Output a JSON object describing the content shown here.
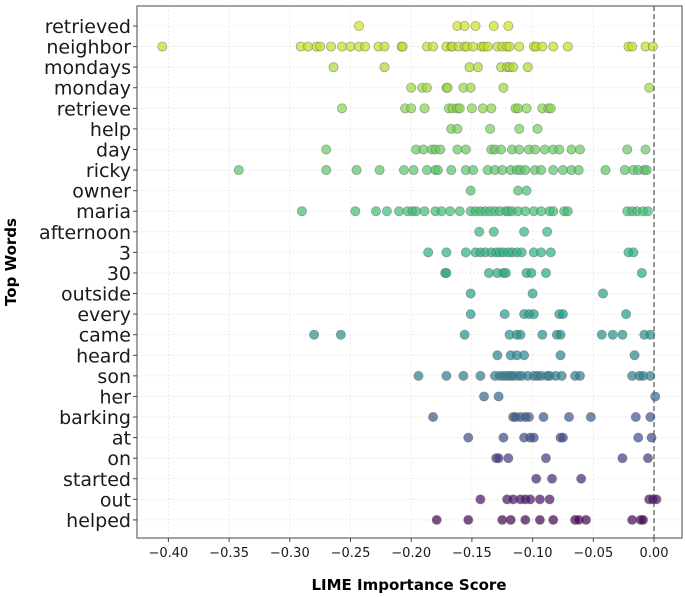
{
  "chart_data": {
    "type": "scatter",
    "subtype": "strip",
    "title": "",
    "xlabel": "LIME Importance Score",
    "ylabel": "Top Words",
    "xlim": [
      -0.42,
      0.02
    ],
    "xticks": [
      -0.4,
      -0.35,
      -0.3,
      -0.25,
      -0.2,
      -0.15,
      -0.1,
      -0.05,
      0.0
    ],
    "xtick_labels": [
      "−0.40",
      "−0.35",
      "−0.30",
      "−0.25",
      "−0.20",
      "−0.15",
      "−0.10",
      "−0.05",
      "0.00"
    ],
    "grid": true,
    "reference_line": {
      "x": 0.0,
      "style": "dashed",
      "color": "#555555"
    },
    "colormap": "viridis (top=yellow, bottom=purple)",
    "categories": [
      "retrieved",
      "neighbor",
      "mondays",
      "monday",
      "retrieve",
      "help",
      "day",
      "ricky",
      "owner",
      "maria",
      "afternoon",
      "3",
      "30",
      "outside",
      "every",
      "came",
      "heard",
      "son",
      "her",
      "barking",
      "at",
      "on",
      "started",
      "out",
      "helped"
    ],
    "colors": [
      "#d2e21b",
      "#c2df23",
      "#addc30",
      "#9ad93c",
      "#86d549",
      "#75d054",
      "#65cb5e",
      "#56c667",
      "#48c16e",
      "#3dbc74",
      "#32b67a",
      "#2ab07f",
      "#24aa83",
      "#1fa287",
      "#1e9b8a",
      "#21918c",
      "#25858e",
      "#2c7b8e",
      "#31688e",
      "#38598c",
      "#3f4a8a",
      "#453781",
      "#482475",
      "#471365",
      "#440154"
    ],
    "series": [
      {
        "name": "retrieved",
        "values": [
          -0.243,
          -0.162,
          -0.156,
          -0.147,
          -0.132,
          -0.12
        ]
      },
      {
        "name": "neighbor",
        "values": [
          -0.405,
          -0.291,
          -0.285,
          -0.278,
          -0.275,
          -0.266,
          -0.257,
          -0.25,
          -0.243,
          -0.238,
          -0.227,
          -0.222,
          -0.208,
          -0.207,
          -0.187,
          -0.182,
          -0.171,
          -0.167,
          -0.166,
          -0.161,
          -0.156,
          -0.154,
          -0.149,
          -0.142,
          -0.14,
          -0.137,
          -0.129,
          -0.125,
          -0.121,
          -0.119,
          -0.111,
          -0.099,
          -0.097,
          -0.092,
          -0.083,
          -0.071,
          -0.021,
          -0.018,
          -0.007,
          -0.001
        ]
      },
      {
        "name": "mondays",
        "values": [
          -0.264,
          -0.222,
          -0.152,
          -0.145,
          -0.126,
          -0.121,
          -0.119,
          -0.116,
          -0.104
        ]
      },
      {
        "name": "monday",
        "values": [
          -0.2,
          -0.191,
          -0.187,
          -0.171,
          -0.17,
          -0.157,
          -0.151,
          -0.124,
          -0.004
        ]
      },
      {
        "name": "retrieve",
        "values": [
          -0.257,
          -0.205,
          -0.2,
          -0.189,
          -0.169,
          -0.166,
          -0.162,
          -0.16,
          -0.15,
          -0.141,
          -0.134,
          -0.114,
          -0.112,
          -0.105,
          -0.092,
          -0.087,
          -0.085
        ]
      },
      {
        "name": "help",
        "values": [
          -0.167,
          -0.162,
          -0.135,
          -0.111,
          -0.096
        ]
      },
      {
        "name": "day",
        "values": [
          -0.27,
          -0.196,
          -0.19,
          -0.183,
          -0.18,
          -0.176,
          -0.162,
          -0.155,
          -0.134,
          -0.131,
          -0.126,
          -0.117,
          -0.111,
          -0.103,
          -0.098,
          -0.09,
          -0.083,
          -0.078,
          -0.068,
          -0.061,
          -0.022,
          -0.007
        ]
      },
      {
        "name": "ricky",
        "values": [
          -0.342,
          -0.27,
          -0.245,
          -0.226,
          -0.206,
          -0.198,
          -0.187,
          -0.18,
          -0.178,
          -0.167,
          -0.155,
          -0.149,
          -0.137,
          -0.131,
          -0.125,
          -0.118,
          -0.113,
          -0.11,
          -0.106,
          -0.098,
          -0.093,
          -0.083,
          -0.075,
          -0.068,
          -0.062,
          -0.04,
          -0.024,
          -0.017,
          -0.013,
          -0.008,
          -0.006
        ]
      },
      {
        "name": "owner",
        "values": [
          -0.151,
          -0.112,
          -0.105
        ]
      },
      {
        "name": "maria",
        "values": [
          -0.29,
          -0.246,
          -0.229,
          -0.22,
          -0.21,
          -0.203,
          -0.199,
          -0.196,
          -0.189,
          -0.18,
          -0.175,
          -0.168,
          -0.16,
          -0.151,
          -0.147,
          -0.143,
          -0.139,
          -0.135,
          -0.131,
          -0.127,
          -0.122,
          -0.12,
          -0.117,
          -0.112,
          -0.106,
          -0.099,
          -0.093,
          -0.086,
          -0.083,
          -0.074,
          -0.071,
          -0.022,
          -0.018,
          -0.014,
          -0.009,
          -0.005
        ]
      },
      {
        "name": "afternoon",
        "values": [
          -0.144,
          -0.132,
          -0.107,
          -0.088
        ]
      },
      {
        "name": "3",
        "values": [
          -0.186,
          -0.171,
          -0.155,
          -0.147,
          -0.143,
          -0.139,
          -0.134,
          -0.13,
          -0.127,
          -0.124,
          -0.12,
          -0.117,
          -0.113,
          -0.109,
          -0.099,
          -0.093,
          -0.085,
          -0.021,
          -0.017
        ]
      },
      {
        "name": "30",
        "values": [
          -0.172,
          -0.171,
          -0.136,
          -0.129,
          -0.124,
          -0.122,
          -0.105,
          -0.101,
          -0.089,
          -0.01
        ]
      },
      {
        "name": "outside",
        "values": [
          -0.151,
          -0.1,
          -0.042
        ]
      },
      {
        "name": "every",
        "values": [
          -0.151,
          -0.123,
          -0.107,
          -0.103,
          -0.099,
          -0.078,
          -0.075,
          -0.023
        ]
      },
      {
        "name": "came",
        "values": [
          -0.28,
          -0.258,
          -0.156,
          -0.119,
          -0.113,
          -0.11,
          -0.092,
          -0.08,
          -0.077,
          -0.043,
          -0.034,
          -0.026,
          -0.008,
          -0.003
        ]
      },
      {
        "name": "heard",
        "values": [
          -0.129,
          -0.118,
          -0.113,
          -0.107,
          -0.077,
          -0.016
        ]
      },
      {
        "name": "son",
        "values": [
          -0.194,
          -0.171,
          -0.157,
          -0.143,
          -0.131,
          -0.127,
          -0.124,
          -0.121,
          -0.118,
          -0.116,
          -0.112,
          -0.109,
          -0.104,
          -0.099,
          -0.096,
          -0.093,
          -0.088,
          -0.086,
          -0.081,
          -0.076,
          -0.065,
          -0.061,
          -0.018,
          -0.012,
          -0.009,
          -0.003
        ]
      },
      {
        "name": "her",
        "values": [
          -0.14,
          -0.128,
          0.001
        ]
      },
      {
        "name": "barking",
        "values": [
          -0.182,
          -0.116,
          -0.114,
          -0.11,
          -0.106,
          -0.103,
          -0.091,
          -0.07,
          -0.052,
          -0.015,
          -0.003
        ]
      },
      {
        "name": "at",
        "values": [
          -0.153,
          -0.124,
          -0.107,
          -0.102,
          -0.099,
          -0.077,
          -0.075,
          -0.013,
          -0.002
        ]
      },
      {
        "name": "on",
        "values": [
          -0.13,
          -0.128,
          -0.12,
          -0.089,
          -0.026,
          -0.005
        ]
      },
      {
        "name": "started",
        "values": [
          -0.097,
          -0.084,
          -0.06
        ]
      },
      {
        "name": "out",
        "values": [
          -0.143,
          -0.121,
          -0.116,
          -0.11,
          -0.106,
          -0.102,
          -0.094,
          -0.086,
          -0.004,
          -0.001,
          0.002
        ]
      },
      {
        "name": "helped",
        "values": [
          -0.179,
          -0.153,
          -0.125,
          -0.118,
          -0.106,
          -0.094,
          -0.083,
          -0.065,
          -0.062,
          -0.056,
          -0.018,
          -0.011,
          -0.009
        ]
      }
    ]
  }
}
